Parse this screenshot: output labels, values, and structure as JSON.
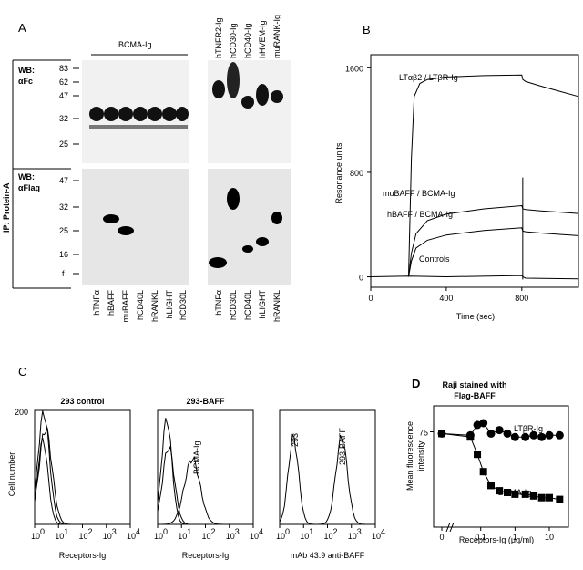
{
  "panels": {
    "a": {
      "letter": "A",
      "header": "BCMA-Ig",
      "row_label_top": [
        "WB:",
        "αFc"
      ],
      "row_label_bottom": [
        "WB:",
        "αFlag"
      ],
      "side_label": "IP: Protein-A",
      "mw_top": [
        "83",
        "62",
        "47",
        "32",
        "25"
      ],
      "mw_bottom": [
        "47",
        "32",
        "25",
        "16",
        "f"
      ],
      "right_receptors": [
        "hTNFR2-Ig",
        "hCD30-Ig",
        "hCD40-Ig",
        "hHVEM-Ig",
        "muRANK-Ig"
      ],
      "left_ligands": [
        "hTNFα",
        "hBAFF",
        "muBAFF",
        "hCD40L",
        "hRANKL",
        "hLIGHT",
        "hCD30L"
      ],
      "right_ligands": [
        "hTNFα",
        "hCD30L",
        "hCD40L",
        "hLIGHT",
        "hRANKL"
      ]
    },
    "c": {
      "letter": "C",
      "subpanels": [
        {
          "title": "293 control",
          "xlabel": "Receptors-Ig",
          "annotations": []
        },
        {
          "title": "293-BAFF",
          "xlabel": "Receptors-Ig",
          "annotations": [
            "BCMA-Ig"
          ]
        },
        {
          "title": "",
          "xlabel": "mAb 43.9 anti-BAFF",
          "annotations": [
            "293",
            "293-BAFF"
          ]
        }
      ],
      "ylabel": "Cell number",
      "ytick": "200",
      "xticks": [
        "10",
        "10",
        "10",
        "10",
        "10"
      ],
      "xtick_exponents": [
        "0",
        "1",
        "2",
        "3",
        "4"
      ]
    }
  },
  "chart_data": [
    {
      "id": "B",
      "letter": "B",
      "type": "line",
      "title": "",
      "xlabel": "Time (sec)",
      "ylabel": "Resonance units",
      "xlim": [
        0,
        1100
      ],
      "ylim": [
        -80,
        1700
      ],
      "xticks": [
        0,
        400,
        800
      ],
      "yticks": [
        0,
        800,
        1600
      ],
      "grid": false,
      "series": [
        {
          "name": "LTαβ2 / LTβR-Ig",
          "x": [
            200,
            215,
            230,
            260,
            300,
            400,
            600,
            800,
            805,
            820,
            900,
            1000,
            1100
          ],
          "y": [
            0,
            900,
            1380,
            1480,
            1510,
            1530,
            1540,
            1545,
            1510,
            1495,
            1460,
            1420,
            1380
          ]
        },
        {
          "name": "muBAFF / BCMA-Ig",
          "x": [
            200,
            215,
            240,
            300,
            400,
            600,
            800,
            805,
            820,
            900,
            1000,
            1100
          ],
          "y": [
            0,
            180,
            330,
            430,
            480,
            520,
            545,
            520,
            515,
            505,
            495,
            485
          ]
        },
        {
          "name": "hBAFF / BCMA-Ig",
          "x": [
            200,
            215,
            240,
            300,
            400,
            600,
            800,
            805,
            820,
            900,
            1000,
            1100
          ],
          "y": [
            0,
            120,
            220,
            280,
            320,
            355,
            375,
            350,
            345,
            335,
            325,
            315
          ]
        },
        {
          "name": "Controls",
          "x": [
            0,
            200,
            400,
            800,
            805,
            820,
            1100
          ],
          "y": [
            0,
            5,
            0,
            10,
            0,
            -10,
            -15
          ]
        }
      ]
    },
    {
      "id": "D",
      "letter": "D",
      "type": "line",
      "title": "Raji stained with Flag-BAFF",
      "xlabel": "Receptors-Ig (μg/ml)",
      "ylabel": "Mean fluorescence intensity",
      "yticks": [
        75
      ],
      "xtick_labels": [
        "0",
        "0.1",
        "1",
        "10"
      ],
      "xscale": "log",
      "grid": false,
      "zero_value_x": 0,
      "xlim": [
        0.01,
        25
      ],
      "ylim": [
        20,
        90
      ],
      "series": [
        {
          "name": "LTβR-Ig",
          "marker": "circle",
          "x": [
            0,
            0.05,
            0.08,
            0.12,
            0.2,
            0.35,
            0.6,
            1,
            2,
            3.5,
            6,
            10,
            20
          ],
          "y": [
            74,
            73,
            79,
            80,
            74,
            76,
            74,
            72,
            72,
            73,
            72,
            73,
            73
          ]
        },
        {
          "name": "BCMA-Ig",
          "marker": "square",
          "x": [
            0,
            0.05,
            0.08,
            0.12,
            0.2,
            0.35,
            0.6,
            1,
            2,
            3.5,
            6,
            10,
            20
          ],
          "y": [
            74,
            72,
            62,
            52,
            44,
            41,
            40,
            39,
            39,
            38,
            37,
            37,
            36
          ]
        }
      ]
    }
  ]
}
